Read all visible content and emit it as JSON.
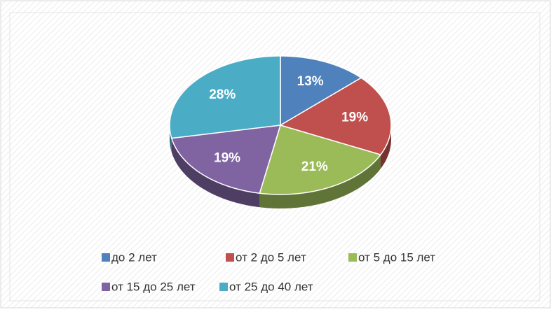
{
  "chart_data": {
    "type": "pie",
    "categories": [
      "до 2 лет",
      "от 2 до 5 лет",
      "от 5 до 15 лет",
      "от 15 до 25 лет",
      "от 25 до 40 лет"
    ],
    "values": [
      13,
      19,
      21,
      19,
      28
    ],
    "value_labels": [
      "13%",
      "19%",
      "21%",
      "19%",
      "28%"
    ],
    "colors": [
      "#4f81bd",
      "#c0504d",
      "#9bbb59",
      "#8064a2",
      "#4bacc6"
    ]
  }
}
